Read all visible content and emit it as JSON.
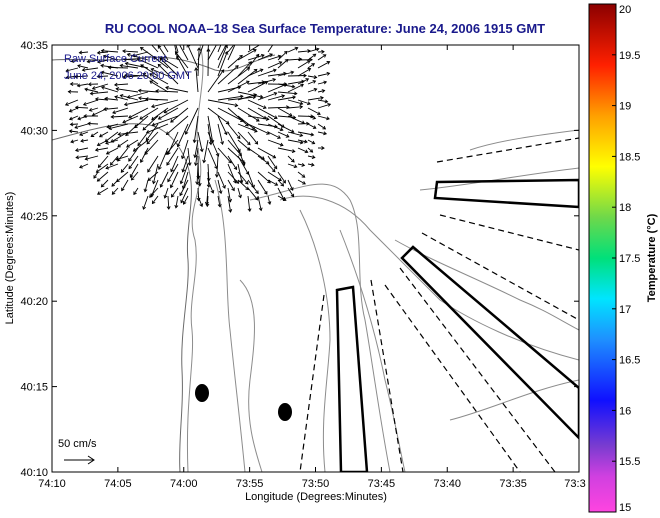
{
  "chart_data": {
    "type": "vector-map",
    "title": "RU COOL  NOAA–18  Sea Surface Temperature:  June 24, 2006 1915 GMT",
    "annotations": [
      "Raw Surface Current",
      "June 24, 2006 20:00 GMT"
    ],
    "xlabel": "Longitude (Degrees:Minutes)",
    "ylabel": "Latitude (Degrees:Minutes)",
    "xlim": [
      -74.1667,
      -73.5
    ],
    "ylim": [
      40.1667,
      40.5833
    ],
    "x_ticks": [
      "74:10",
      "74:05",
      "74:00",
      "73:55",
      "73:50",
      "73:45",
      "73:40",
      "73:35",
      "73:3"
    ],
    "y_ticks": [
      "40:10",
      "40:15",
      "40:20",
      "40:25",
      "40:30",
      "40:35"
    ],
    "colorbar": {
      "label": "Temperature (°C)",
      "range": [
        15,
        20
      ],
      "ticks": [
        "15",
        "15.5",
        "16",
        "16.5",
        "17",
        "17.5",
        "18",
        "18.5",
        "19",
        "19.5",
        "20"
      ]
    },
    "scale_vector": {
      "label": "50 cm/s",
      "speed_cm_s": 50
    },
    "radar_sites": [
      {
        "lon": -73.9833,
        "lat": 40.2417
      },
      {
        "lon": -73.9083,
        "lat": 40.225
      }
    ],
    "vector_field": {
      "center_lon": -73.9667,
      "center_lat": 40.5333,
      "description": "dense raw surface current vectors radiating from harbor mouth"
    },
    "grid": false
  },
  "colors": {
    "title": "#1a1a8c",
    "contour": "#8c8c8c",
    "channel": "#000000",
    "colormap_stops": [
      "#ff44e0",
      "#7a3cd0",
      "#1010ff",
      "#1e90ff",
      "#00e5ff",
      "#00e07a",
      "#6ed84a",
      "#ffff00",
      "#ffa000",
      "#ff2000",
      "#8b0000"
    ]
  }
}
